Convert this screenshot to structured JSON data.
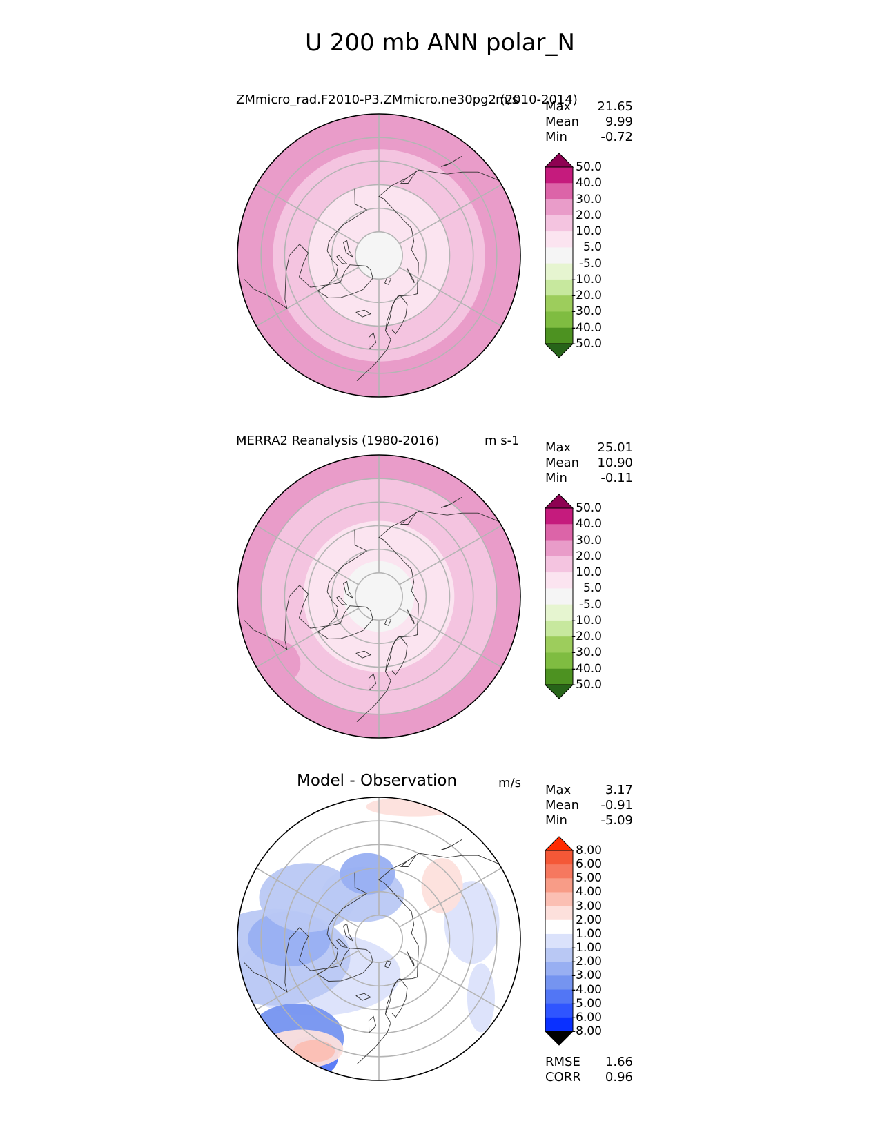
{
  "figure": {
    "title": "U 200 mb ANN polar_N"
  },
  "colors": {
    "pink_scale": [
      "#276419",
      "#4d9221",
      "#7fbc41",
      "#b8e186",
      "#e6f5d0",
      "#f7f7f7",
      "#fde0ef",
      "#f1b6da",
      "#de77ae",
      "#c51b7d",
      "#8e0152"
    ],
    "pink_bins": [
      "#276419",
      "#4d9221",
      "#7fbc41",
      "#9dcd5c",
      "#c7e89e",
      "#e6f5d0",
      "#f5f5f5",
      "#fbe4f0",
      "#f4c4e0",
      "#e99cc9",
      "#dc64a8",
      "#c51b7d",
      "#8e0152"
    ],
    "diff_bins": [
      "#0a30ff",
      "#2f55ff",
      "#5276f5",
      "#7594f0",
      "#98aff2",
      "#b9c8f4",
      "#dbe2fb",
      "#ffffff",
      "#fde0dc",
      "#fbbfb3",
      "#f89c87",
      "#f6785f",
      "#f45837",
      "#ff2a00"
    ],
    "grid": "#b4b4b4",
    "coast": "#333333"
  },
  "chart_data": [
    {
      "type": "heatmap",
      "projection": "north-polar-stereographic",
      "title_left": "ZMmicro_rad.F2010-P3.ZMmicro.ne30pg2 (2010-2014)",
      "title_right": "m/s",
      "stats": [
        {
          "label": "Max",
          "value": "21.65"
        },
        {
          "label": "Mean",
          "value": "9.99"
        },
        {
          "label": "Min",
          "value": "-0.72"
        }
      ],
      "colorbar": {
        "levels": [
          "50.0",
          "40.0",
          "30.0",
          "20.0",
          "10.0",
          "5.0",
          "-5.0",
          "-10.0",
          "-20.0",
          "-30.0",
          "-40.0",
          "-50.0"
        ],
        "extend": "both"
      },
      "field": [
        {
          "lat_min": 80,
          "value": 3
        },
        {
          "lat_min": 60,
          "value": 8
        },
        {
          "lat_min": 45,
          "value": 14
        },
        {
          "lat_min": 30,
          "value": 22
        }
      ]
    },
    {
      "type": "heatmap",
      "projection": "north-polar-stereographic",
      "title_left": "MERRA2 Reanalysis (1980-2016)",
      "title_right": "m s-1",
      "stats": [
        {
          "label": "Max",
          "value": "25.01"
        },
        {
          "label": "Mean",
          "value": "10.90"
        },
        {
          "label": "Min",
          "value": "-0.11"
        }
      ],
      "colorbar": {
        "levels": [
          "50.0",
          "40.0",
          "30.0",
          "20.0",
          "10.0",
          "5.0",
          "-5.0",
          "-10.0",
          "-20.0",
          "-30.0",
          "-40.0",
          "-50.0"
        ],
        "extend": "both"
      },
      "field": [
        {
          "lat_min": 75,
          "value": 3
        },
        {
          "lat_min": 58,
          "value": 8
        },
        {
          "lat_min": 40,
          "value": 14
        },
        {
          "lat_min": 30,
          "value": 24
        }
      ]
    },
    {
      "type": "heatmap",
      "projection": "north-polar-stereographic",
      "title_left": "Model - Observation",
      "title_right": "m/s",
      "stats": [
        {
          "label": "Max",
          "value": "3.17"
        },
        {
          "label": "Mean",
          "value": "-0.91"
        },
        {
          "label": "Min",
          "value": "-5.09"
        }
      ],
      "colorbar": {
        "levels": [
          "8.00",
          "6.00",
          "5.00",
          "4.00",
          "3.00",
          "2.00",
          "1.00",
          "-1.00",
          "-2.00",
          "-3.00",
          "-4.00",
          "-5.00",
          "-6.00",
          "-8.00"
        ],
        "extend": "both"
      },
      "metrics": [
        {
          "label": "RMSE",
          "value": "1.66"
        },
        {
          "label": "CORR",
          "value": "0.96"
        }
      ]
    }
  ],
  "map": {
    "lat_circles": [
      80,
      70,
      60,
      50,
      40
    ],
    "lon_lines": [
      0,
      60,
      120,
      180,
      240,
      300
    ],
    "lat_min": 30
  }
}
